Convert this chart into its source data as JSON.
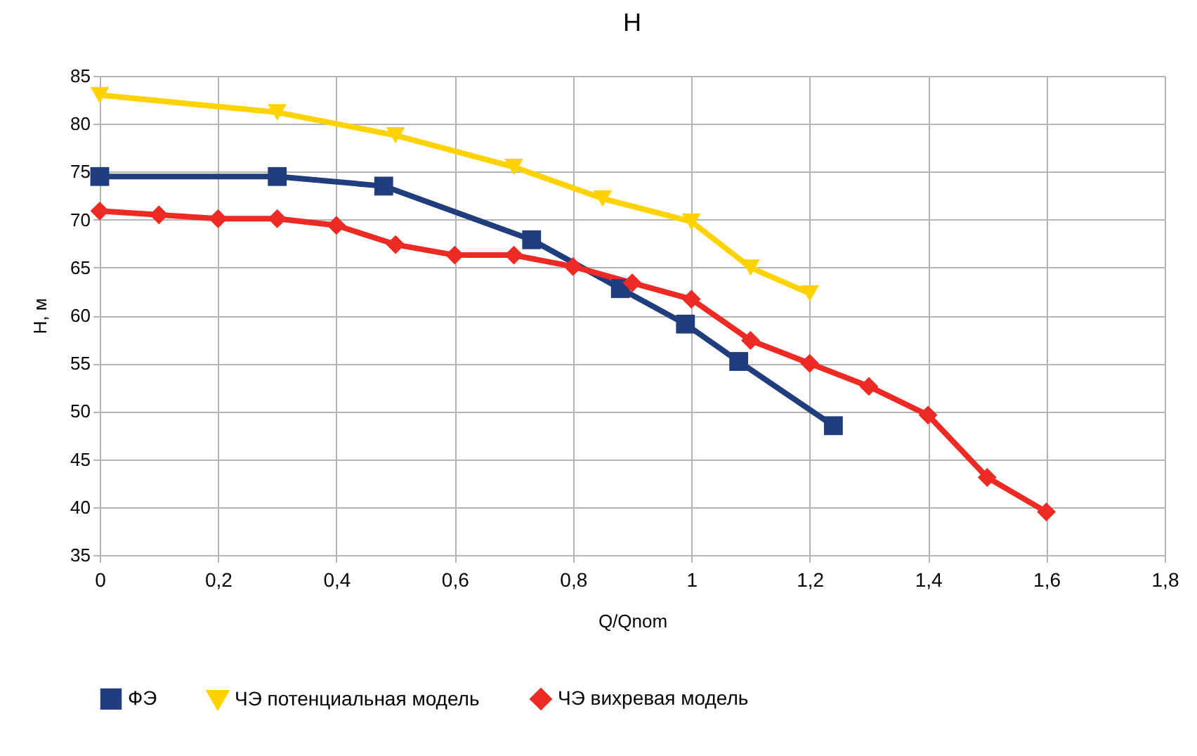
{
  "chart_data": {
    "type": "line",
    "title": "H",
    "xlabel": "Q/Qnom",
    "ylabel": "H, м",
    "xlim": [
      0,
      1.8
    ],
    "xticks": [
      0,
      {
        "value": 0.2,
        "label": "0,2"
      },
      {
        "value": 0.4,
        "label": "0,4"
      },
      {
        "value": 0.6,
        "label": "0,6"
      },
      {
        "value": 0.8,
        "label": "0,8"
      },
      1,
      {
        "value": 1.2,
        "label": "1,2"
      },
      {
        "value": 1.4,
        "label": "1,4"
      },
      {
        "value": 1.6,
        "label": "1,6"
      },
      {
        "value": 1.8,
        "label": "1,8"
      }
    ],
    "ylim": [
      35,
      85
    ],
    "yticks": [
      35,
      40,
      45,
      50,
      55,
      60,
      65,
      70,
      75,
      80,
      85
    ],
    "grid": true,
    "legend": "bottom",
    "line_style": "solid",
    "series": [
      {
        "name": "ФЭ",
        "color": "#203d7d",
        "marker": "square",
        "x": [
          0,
          0.3,
          0.48,
          0.73,
          0.88,
          0.99,
          1.08,
          1.24
        ],
        "values": [
          74.5,
          74.5,
          73.5,
          67.9,
          62.8,
          59.1,
          55.2,
          48.5
        ]
      },
      {
        "name": "ЧЭ потенциальная модель",
        "color": "#ffd200",
        "marker": "triangle",
        "x": [
          0,
          0.3,
          0.5,
          0.7,
          0.85,
          1.0,
          1.1,
          1.2
        ],
        "values": [
          83,
          81.2,
          78.8,
          75.5,
          72.2,
          69.8,
          65,
          62.3
        ]
      },
      {
        "name": "ЧЭ вихревая модель",
        "color": "#ee2a24",
        "marker": "diamond",
        "x": [
          0,
          0.1,
          0.2,
          0.3,
          0.4,
          0.5,
          0.6,
          0.7,
          0.8,
          0.9,
          1.0,
          1.1,
          1.2,
          1.3,
          1.4,
          1.5,
          1.6
        ],
        "values": [
          70.9,
          70.5,
          70.1,
          70.1,
          69.4,
          67.4,
          66.3,
          66.3,
          65.1,
          63.4,
          61.7,
          57.4,
          55,
          52.6,
          49.6,
          43.1,
          39.5
        ]
      }
    ]
  }
}
